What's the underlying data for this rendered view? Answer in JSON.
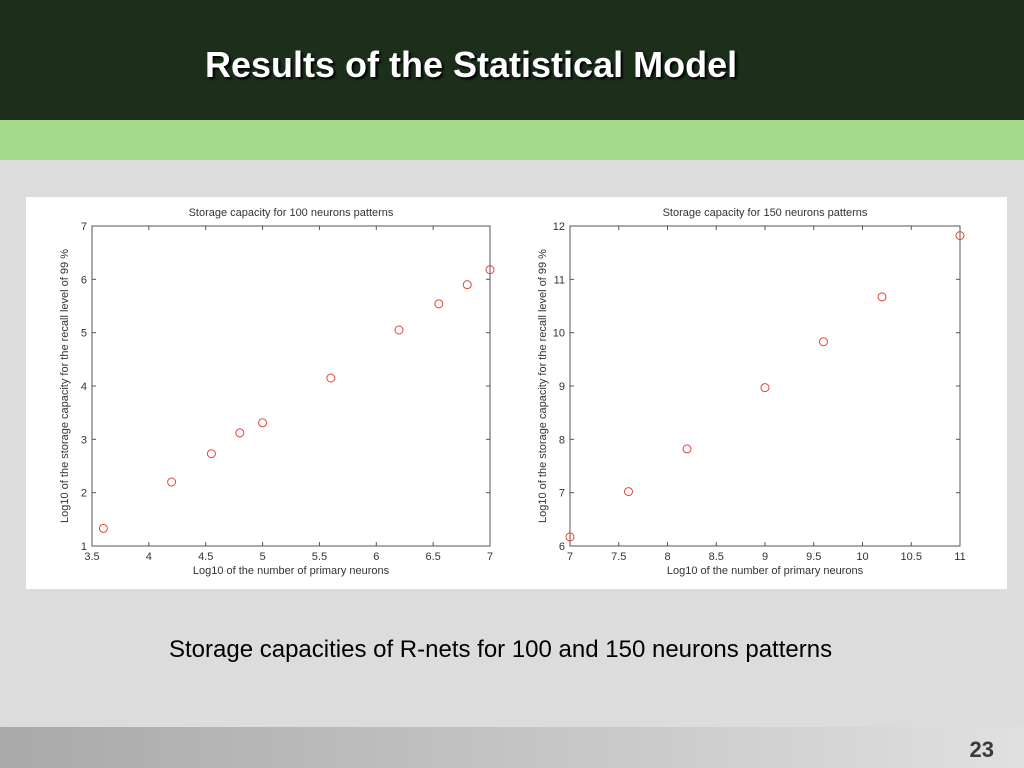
{
  "slide": {
    "title": "Results of the Statistical Model",
    "caption": "Storage capacities of R-nets for 100 and 150 neurons patterns",
    "page_number": "23"
  },
  "colors": {
    "header": "#1b2f1b",
    "accent_band": "#a4d98c",
    "marker": "#e8413e"
  },
  "chart_data": [
    {
      "type": "scatter",
      "title": "Storage capacity for 100 neurons patterns",
      "xlabel": "Log10 of the number of primary neurons",
      "ylabel": "Log10 of the storage capacity for the recall level of 99 %",
      "xlim": [
        3.5,
        7
      ],
      "ylim": [
        1,
        7
      ],
      "xticks": [
        "3.5",
        "4",
        "4.5",
        "5",
        "5.5",
        "6",
        "6.5",
        "7"
      ],
      "yticks": [
        "1",
        "2",
        "3",
        "4",
        "5",
        "6",
        "7"
      ],
      "grid": false,
      "marker": "circle",
      "x": [
        3.6,
        4.2,
        4.55,
        4.8,
        5.0,
        5.6,
        6.2,
        6.55,
        6.8,
        7.0
      ],
      "y": [
        1.33,
        2.2,
        2.73,
        3.12,
        3.31,
        4.15,
        5.05,
        5.54,
        5.9,
        6.18
      ]
    },
    {
      "type": "scatter",
      "title": "Storage capacity for 150 neurons patterns",
      "xlabel": "Log10 of the number of primary neurons",
      "ylabel": "Log10 of the storage capacity for the recall level of 99 %",
      "xlim": [
        7,
        11
      ],
      "ylim": [
        6,
        12
      ],
      "xticks": [
        "7",
        "7.5",
        "8",
        "8.5",
        "9",
        "9.5",
        "10",
        "10.5",
        "11"
      ],
      "yticks": [
        "6",
        "7",
        "8",
        "9",
        "10",
        "11",
        "12"
      ],
      "grid": false,
      "marker": "circle",
      "x": [
        7.0,
        7.6,
        8.2,
        9.0,
        9.6,
        10.2,
        11.0
      ],
      "y": [
        6.17,
        7.02,
        7.82,
        8.97,
        9.83,
        10.67,
        11.82
      ]
    }
  ]
}
